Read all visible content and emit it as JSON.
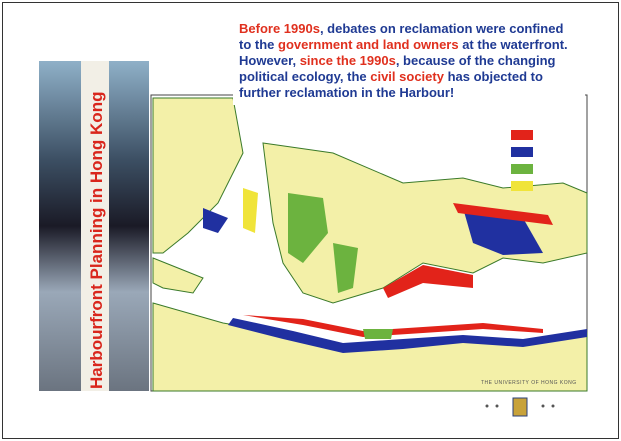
{
  "slide": {
    "title": "Harbourfront Planning in Hong Kong",
    "text_segments": [
      {
        "text": "Before 1990s",
        "highlight": true
      },
      {
        "text": ", debates on reclamation were confined to the ",
        "highlight": false
      },
      {
        "text": "government and land owners",
        "highlight": true
      },
      {
        "text": " at the waterfront. However, ",
        "highlight": false
      },
      {
        "text": "since the 1990s",
        "highlight": true
      },
      {
        "text": ", because of the changing political ecology, the ",
        "highlight": false
      },
      {
        "text": "civil society",
        "highlight": true
      },
      {
        "text": " has objected to further reclamation in the Harbour!",
        "highlight": false
      }
    ],
    "logo": "THE UNIVERSITY OF HONG KONG"
  }
}
